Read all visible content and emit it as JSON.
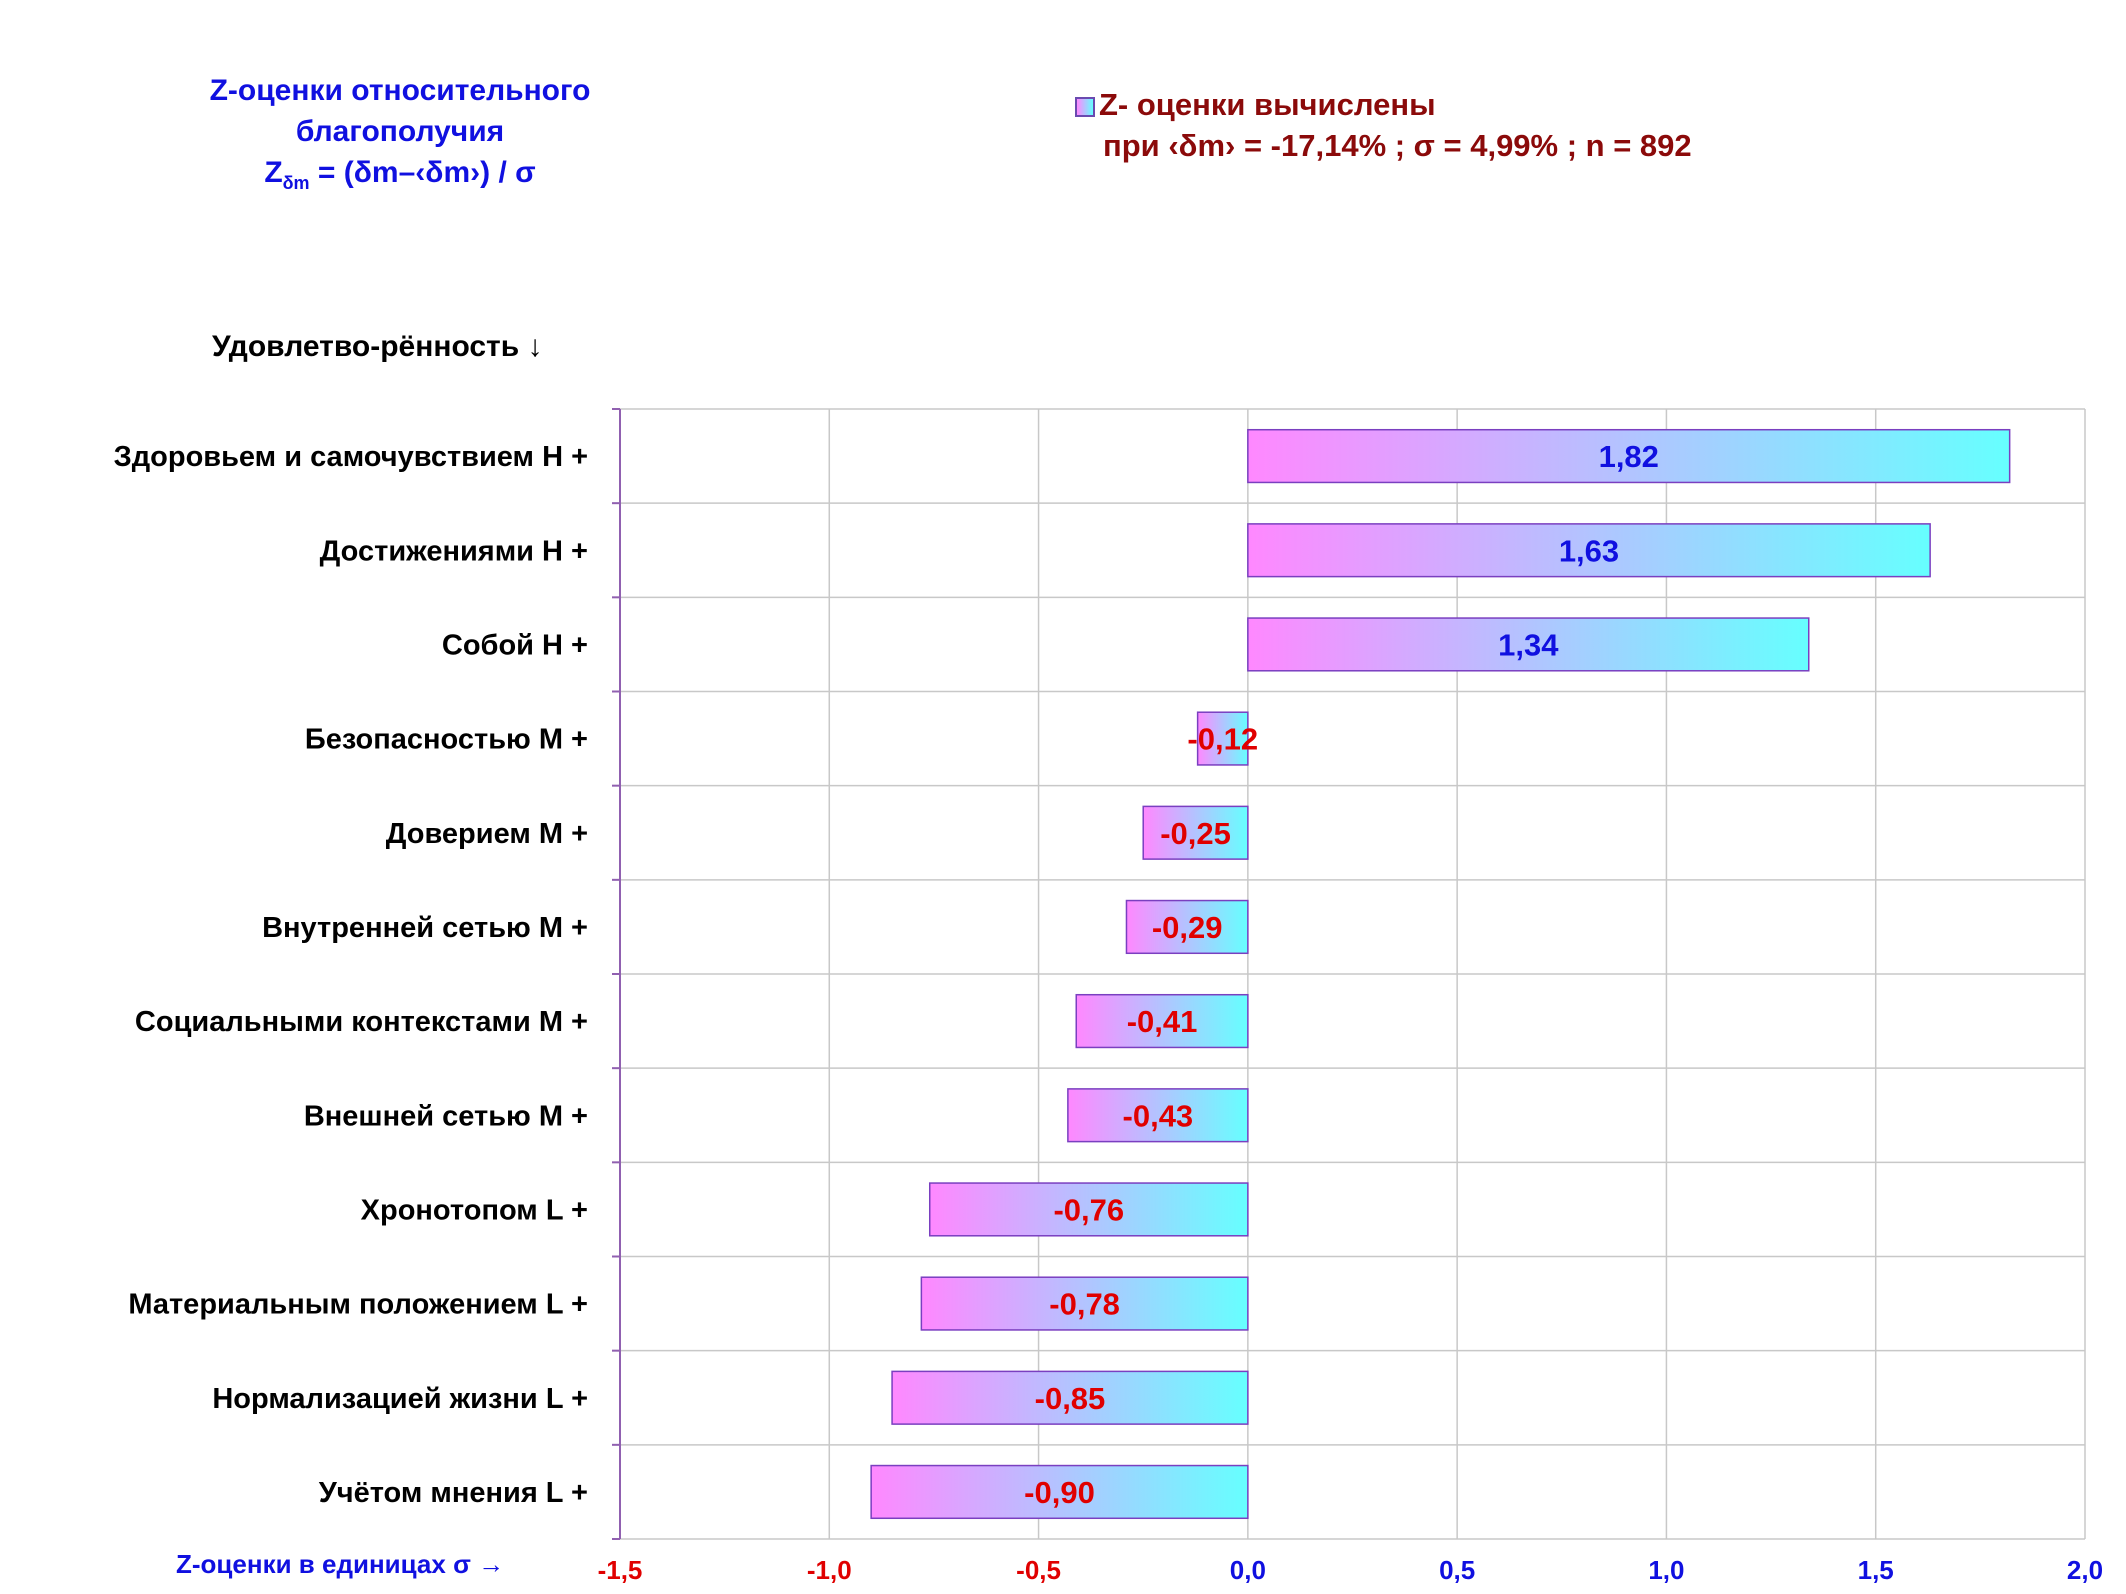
{
  "header": {
    "title_line1": "Z-оценки  относительного",
    "title_line2": "благополучия",
    "formula_z": "Z",
    "formula_sub": "δm",
    "formula_rest": " = (δm–‹δm›)  / σ"
  },
  "legend": {
    "line1": "Z- оценки вычислены",
    "line2": "при ‹δm› = -17,14% ; σ = 4,99% ; n = 892"
  },
  "chart_data": {
    "type": "bar",
    "orientation": "horizontal",
    "ylabel": "Удовлетво-рённость ↓",
    "xlabel": "Z-оценки в единицах σ →",
    "xlim": [
      -1.5,
      2.0
    ],
    "xticks": [
      -1.5,
      -1.0,
      -0.5,
      0.0,
      0.5,
      1.0,
      1.5,
      2.0
    ],
    "xtick_labels": [
      "-1,5",
      "-1,0",
      "-0,5",
      "0,0",
      "0,5",
      "1,0",
      "1,5",
      "2,0"
    ],
    "grid": true,
    "categories": [
      "Здоровьем и самочувствием  Н +",
      "Достижениями  Н +",
      "Собой  Н +",
      "Безопасностью  М +",
      "Доверием  М +",
      "Внутренней сетью  М +",
      "Социальными контекстами  М +",
      "Внешней сетью  М +",
      "Хронотопом  L +",
      "Материальным положением  L +",
      "Нормализацией жизни  L +",
      "Учётом мнения  L +"
    ],
    "values": [
      1.82,
      1.63,
      1.34,
      -0.12,
      -0.25,
      -0.29,
      -0.41,
      -0.43,
      -0.76,
      -0.78,
      -0.85,
      -0.9
    ],
    "value_labels": [
      "1,82",
      "1,63",
      "1,34",
      "-0,12",
      "-0,25",
      "-0,29",
      "-0,41",
      "-0,43",
      "-0,76",
      "-0,78",
      "-0,85",
      "-0,90"
    ],
    "colors": {
      "bar_start": "#ff88ff",
      "bar_end": "#66ffff",
      "bar_border": "#7a3fc0",
      "positive_label": "#1010e0",
      "negative_label": "#e00000",
      "grid": "#c8c8c8",
      "axis": "#9060b0"
    }
  }
}
